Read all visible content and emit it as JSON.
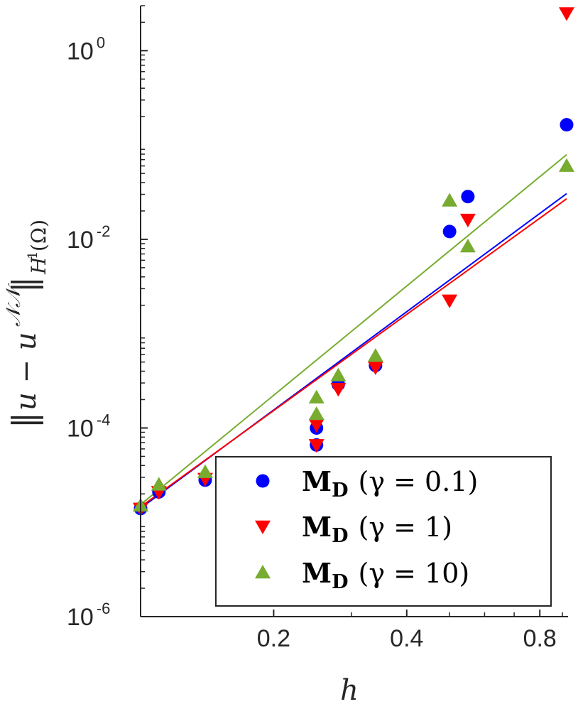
{
  "chart_data": {
    "type": "scatter",
    "title": "",
    "xlabel": "h",
    "ylabel": "||u − u^NN||_{H^1(Ω)}",
    "x_scale": "log",
    "y_scale": "log",
    "xlim": [
      0.1,
      0.92
    ],
    "ylim": [
      1e-06,
      3
    ],
    "x_ticks": [
      {
        "value": 0.2,
        "label": "0.2"
      },
      {
        "value": 0.4,
        "label": "0.4"
      },
      {
        "value": 0.8,
        "label": "0.8"
      }
    ],
    "y_ticks": [
      {
        "value": 1,
        "base": "10",
        "exp": "0"
      },
      {
        "value": 0.01,
        "base": "10",
        "exp": "-2"
      },
      {
        "value": 0.0001,
        "base": "10",
        "exp": "-4"
      },
      {
        "value": 1e-06,
        "base": "10",
        "exp": "-6"
      }
    ],
    "grid": false,
    "legend_position": "bottom-right",
    "series": [
      {
        "name": "M_D (γ = 0.1)",
        "legend": {
          "main": "M",
          "sub": "D",
          "param": "(γ = 0.1)"
        },
        "color": "#0000ff",
        "marker": "circle",
        "x": [
          0.1,
          0.11,
          0.14,
          0.25,
          0.25,
          0.28,
          0.34,
          0.5,
          0.55,
          0.92
        ],
        "y": [
          1.4e-05,
          2.1e-05,
          2.8e-05,
          0.0001,
          6.6e-05,
          0.00029,
          0.00046,
          0.0121,
          0.0284,
          0.164
        ],
        "fit": {
          "x": [
            0.1,
            0.92
          ],
          "y": [
            1.41e-05,
            0.0305
          ]
        }
      },
      {
        "name": "M_D (γ = 1)",
        "legend": {
          "main": "M",
          "sub": "D",
          "param": "(γ = 1)"
        },
        "color": "#ff0000",
        "marker": "triangle-down",
        "x": [
          0.1,
          0.11,
          0.14,
          0.25,
          0.25,
          0.28,
          0.34,
          0.5,
          0.55,
          0.92
        ],
        "y": [
          1.4e-05,
          2.1e-05,
          2.9e-05,
          0.000108,
          6.6e-05,
          0.00026,
          0.00044,
          0.00225,
          0.0162,
          2.5
        ],
        "fit": {
          "x": [
            0.1,
            0.92
          ],
          "y": [
            1.46e-05,
            0.0269
          ]
        }
      },
      {
        "name": "M_D (γ = 10)",
        "legend": {
          "main": "M",
          "sub": "D",
          "param": "(γ = 10)"
        },
        "color": "#77ac30",
        "marker": "triangle-up",
        "x": [
          0.1,
          0.11,
          0.14,
          0.25,
          0.25,
          0.28,
          0.34,
          0.5,
          0.55,
          0.92
        ],
        "y": [
          1.5e-05,
          2.5e-05,
          3.4e-05,
          0.00021,
          0.00014,
          0.00036,
          0.00058,
          0.0257,
          0.0084,
          0.06
        ],
        "fit": {
          "x": [
            0.1,
            0.92
          ],
          "y": [
            1.54e-05,
            0.079
          ]
        }
      }
    ]
  }
}
